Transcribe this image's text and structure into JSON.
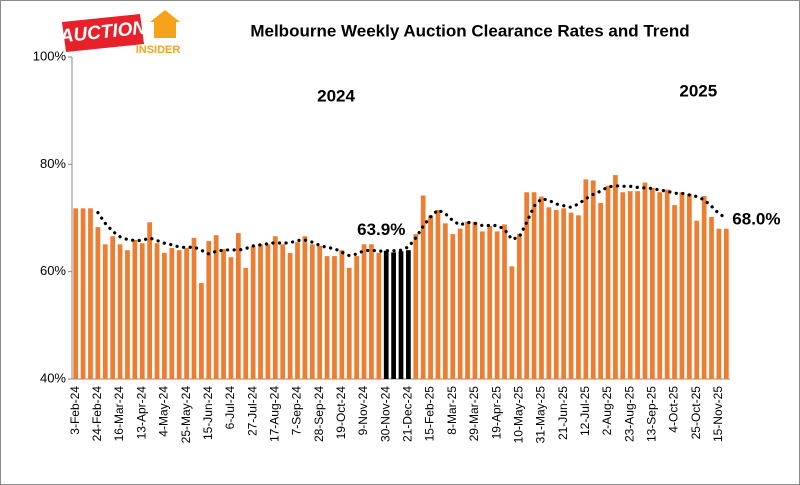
{
  "logo": {
    "line1": "AUCTION",
    "line2": "INSIDER"
  },
  "chart_data": {
    "type": "bar",
    "title": "Melbourne Weekly Auction Clearance Rates and Trend",
    "year_labels": [
      {
        "text": "2024",
        "index": 39
      },
      {
        "text": "2025",
        "index": 88
      }
    ],
    "categories": [
      "3-Feb-24",
      null,
      null,
      "24-Feb-24",
      null,
      null,
      "16-Mar-24",
      null,
      null,
      "13-Apr-24",
      null,
      null,
      "4-May-24",
      null,
      null,
      "25-May-24",
      null,
      null,
      "15-Jun-24",
      null,
      null,
      "6-Jul-24",
      null,
      null,
      "27-Jul-24",
      null,
      null,
      "17-Aug-24",
      null,
      null,
      "7-Sep-24",
      null,
      null,
      "28-Sep-24",
      null,
      null,
      "19-Oct-24",
      null,
      null,
      "9-Nov-24",
      null,
      null,
      "30-Nov-24",
      null,
      null,
      "21-Dec-24",
      null,
      null,
      "15-Feb-25",
      null,
      null,
      "8-Mar-25",
      null,
      null,
      "29-Mar-25",
      null,
      null,
      "19-Apr-25",
      null,
      null,
      "10-May-25",
      null,
      null,
      "31-May-25",
      null,
      null,
      "21-Jun-25",
      null,
      null,
      "12-Jul-25",
      null,
      null,
      "2-Aug-25",
      null,
      null,
      "23-Aug-25",
      null,
      null,
      "13-Sep-25",
      null,
      null,
      "4-Oct-25",
      null,
      null,
      "25-Oct-25",
      null,
      null,
      "15-Nov-25",
      null
    ],
    "values": [
      71.8,
      71.8,
      71.8,
      68.3,
      65.1,
      66.6,
      65.1,
      64.0,
      65.9,
      65.3,
      69.2,
      65.3,
      63.5,
      64.4,
      64.0,
      64.4,
      66.3,
      57.9,
      65.7,
      66.8,
      64.2,
      62.7,
      67.2,
      60.7,
      64.8,
      65.1,
      65.1,
      66.6,
      65.1,
      63.5,
      65.5,
      66.6,
      65.1,
      64.8,
      62.9,
      62.9,
      64.0,
      60.7,
      62.9,
      65.1,
      65.1,
      63.5,
      63.9,
      63.6,
      63.8,
      64.0,
      67.0,
      74.2,
      70.5,
      71.5,
      69.0,
      67.0,
      68.0,
      69.3,
      69.3,
      67.5,
      68.5,
      67.5,
      68.8,
      61.0,
      67.0,
      74.8,
      74.8,
      74.0,
      72.0,
      71.5,
      71.8,
      71.0,
      70.5,
      77.2,
      77.0,
      72.8,
      76.0,
      78.0,
      74.8,
      75.0,
      75.0,
      76.6,
      75.6,
      74.8,
      75.3,
      72.4,
      74.8,
      74.5,
      69.5,
      74.1,
      70.2,
      68.0,
      68.0
    ],
    "color": "#ed7d31",
    "highlight_indices": [
      42,
      43,
      44,
      45
    ],
    "highlight_color": "#000000",
    "trend_values": [
      null,
      null,
      null,
      71.0,
      69.0,
      67.5,
      66.5,
      66.0,
      65.8,
      65.8,
      66.3,
      65.8,
      65.3,
      65.0,
      64.6,
      64.5,
      64.6,
      64.0,
      63.3,
      63.8,
      64.0,
      64.1,
      64.0,
      64.3,
      64.8,
      65.0,
      65.2,
      65.4,
      65.3,
      65.4,
      65.8,
      65.9,
      65.5,
      64.9,
      64.5,
      64.3,
      63.6,
      63.0,
      63.3,
      63.9,
      64.0,
      63.8,
      63.9,
      63.9,
      64.0,
      64.6,
      66.3,
      68.5,
      70.2,
      71.5,
      70.8,
      69.5,
      68.7,
      69.2,
      69.0,
      68.6,
      68.6,
      68.6,
      67.9,
      66.0,
      66.5,
      69.2,
      72.2,
      73.6,
      73.3,
      72.6,
      72.3,
      72.0,
      72.6,
      73.6,
      74.4,
      75.0,
      75.8,
      76.0,
      75.9,
      75.9,
      75.7,
      75.6,
      75.5,
      75.2,
      75.0,
      74.6,
      74.6,
      74.3,
      74.0,
      73.4,
      72.2,
      70.8,
      70.0
    ],
    "trend_color": "#000000",
    "annotations": [
      {
        "text": "63.9%",
        "index": 42
      },
      {
        "text": "68.0%",
        "index": 88
      }
    ],
    "ylim": [
      40,
      100
    ],
    "yticks": [
      {
        "value": 40,
        "label": "40%"
      },
      {
        "value": 60,
        "label": "60%"
      },
      {
        "value": 80,
        "label": "80%"
      },
      {
        "value": 100,
        "label": "100%"
      }
    ],
    "grid": false
  }
}
